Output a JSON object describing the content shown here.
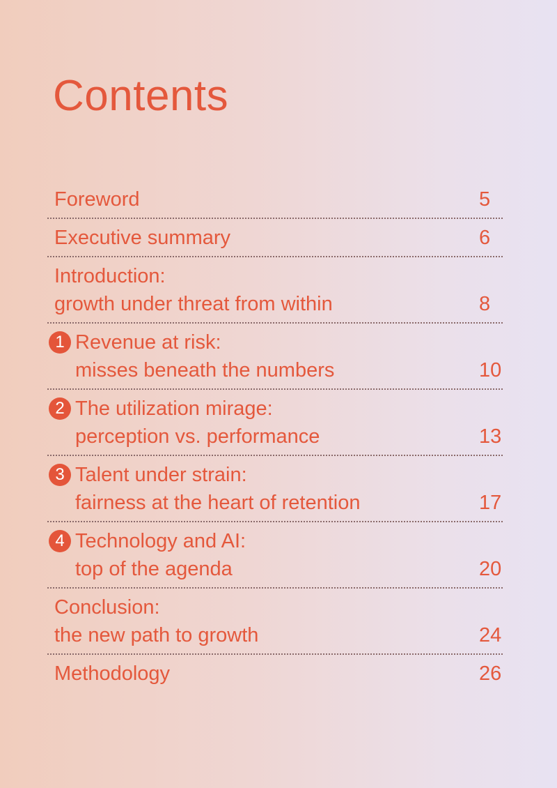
{
  "title": "Contents",
  "entries": [
    {
      "lines": [
        "Foreword"
      ],
      "page": 5
    },
    {
      "lines": [
        "Executive summary"
      ],
      "page": 6
    },
    {
      "lines": [
        "Introduction:",
        "growth under threat from within"
      ],
      "page": 8
    },
    {
      "number": 1,
      "lines": [
        "Revenue at risk:",
        "misses beneath the numbers"
      ],
      "page": 10
    },
    {
      "number": 2,
      "lines": [
        "The utilization mirage:",
        "perception vs. performance"
      ],
      "page": 13
    },
    {
      "number": 3,
      "lines": [
        "Talent under strain:",
        "fairness at the heart of retention"
      ],
      "page": 17
    },
    {
      "number": 4,
      "lines": [
        "Technology and AI:",
        "top of the agenda"
      ],
      "page": 20
    },
    {
      "lines": [
        "Conclusion:",
        "the new path to growth"
      ],
      "page": 24
    },
    {
      "lines": [
        "Methodology"
      ],
      "page": 26
    }
  ]
}
